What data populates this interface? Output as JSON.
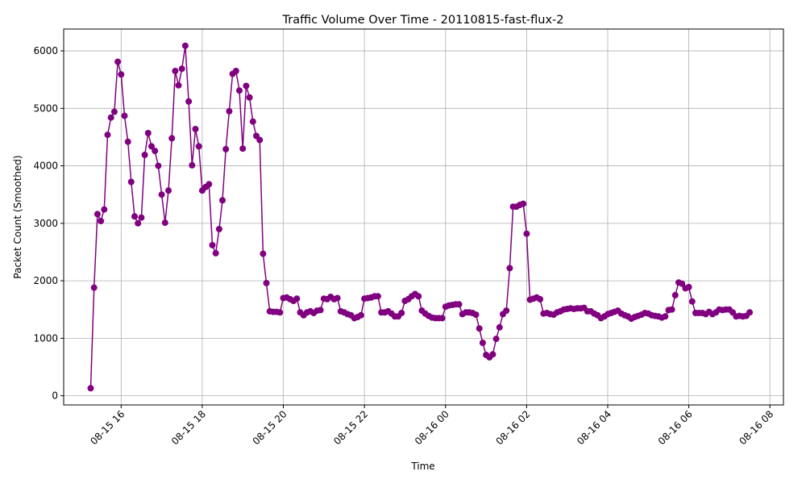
{
  "chart_data": {
    "type": "line",
    "title": "Traffic Volume Over Time - 20110815-fast-flux-2",
    "xlabel": "Time",
    "ylabel": "Packet Count (Smoothed)",
    "x_unit": "time (MM-DD HH:MM, 2011)",
    "xlim": [
      "08-15 14:35",
      "08-16 08:20"
    ],
    "ylim": [
      -160,
      6380
    ],
    "grid": true,
    "legend": "none",
    "x_ticks": [
      "08-15 16",
      "08-15 18",
      "08-15 20",
      "08-15 22",
      "08-16 00",
      "08-16 02",
      "08-16 04",
      "08-16 06",
      "08-16 08"
    ],
    "y_ticks": [
      0,
      1000,
      2000,
      3000,
      4000,
      5000,
      6000
    ],
    "colors": {
      "series": "#800080",
      "grid": "#b0b0b0"
    },
    "series": [
      {
        "marker": "circle",
        "x": [
          "08-15 15:15",
          "08-15 15:20",
          "08-15 15:25",
          "08-15 15:30",
          "08-15 15:35",
          "08-15 15:40",
          "08-15 15:45",
          "08-15 15:50",
          "08-15 15:55",
          "08-15 16:00",
          "08-15 16:05",
          "08-15 16:10",
          "08-15 16:15",
          "08-15 16:20",
          "08-15 16:25",
          "08-15 16:30",
          "08-15 16:35",
          "08-15 16:40",
          "08-15 16:45",
          "08-15 16:50",
          "08-15 16:55",
          "08-15 17:00",
          "08-15 17:05",
          "08-15 17:10",
          "08-15 17:15",
          "08-15 17:20",
          "08-15 17:25",
          "08-15 17:30",
          "08-15 17:35",
          "08-15 17:40",
          "08-15 17:45",
          "08-15 17:50",
          "08-15 17:55",
          "08-15 18:00",
          "08-15 18:05",
          "08-15 18:10",
          "08-15 18:15",
          "08-15 18:20",
          "08-15 18:25",
          "08-15 18:30",
          "08-15 18:35",
          "08-15 18:40",
          "08-15 18:45",
          "08-15 18:50",
          "08-15 18:55",
          "08-15 19:00",
          "08-15 19:05",
          "08-15 19:10",
          "08-15 19:15",
          "08-15 19:20",
          "08-15 19:25",
          "08-15 19:30",
          "08-15 19:35",
          "08-15 19:40",
          "08-15 19:45",
          "08-15 19:50",
          "08-15 19:55",
          "08-15 20:00",
          "08-15 20:05",
          "08-15 20:10",
          "08-15 20:15",
          "08-15 20:20",
          "08-15 20:25",
          "08-15 20:30",
          "08-15 20:35",
          "08-15 20:40",
          "08-15 20:45",
          "08-15 20:50",
          "08-15 20:55",
          "08-15 21:00",
          "08-15 21:05",
          "08-15 21:10",
          "08-15 21:15",
          "08-15 21:20",
          "08-15 21:25",
          "08-15 21:30",
          "08-15 21:35",
          "08-15 21:40",
          "08-15 21:45",
          "08-15 21:50",
          "08-15 21:55",
          "08-15 22:00",
          "08-15 22:05",
          "08-15 22:10",
          "08-15 22:15",
          "08-15 22:20",
          "08-15 22:25",
          "08-15 22:30",
          "08-15 22:35",
          "08-15 22:40",
          "08-15 22:45",
          "08-15 22:50",
          "08-15 22:55",
          "08-15 23:00",
          "08-15 23:05",
          "08-15 23:10",
          "08-15 23:15",
          "08-15 23:20",
          "08-15 23:25",
          "08-15 23:30",
          "08-15 23:35",
          "08-15 23:40",
          "08-15 23:45",
          "08-15 23:50",
          "08-15 23:55",
          "08-16 00:00",
          "08-16 00:05",
          "08-16 00:10",
          "08-16 00:15",
          "08-16 00:20",
          "08-16 00:25",
          "08-16 00:30",
          "08-16 00:35",
          "08-16 00:40",
          "08-16 00:45",
          "08-16 00:50",
          "08-16 00:55",
          "08-16 01:00",
          "08-16 01:05",
          "08-16 01:10",
          "08-16 01:15",
          "08-16 01:20",
          "08-16 01:25",
          "08-16 01:30",
          "08-16 01:35",
          "08-16 01:40",
          "08-16 01:45",
          "08-16 01:50",
          "08-16 01:55",
          "08-16 02:00",
          "08-16 02:05",
          "08-16 02:10",
          "08-16 02:15",
          "08-16 02:20",
          "08-16 02:25",
          "08-16 02:30",
          "08-16 02:35",
          "08-16 02:40",
          "08-16 02:45",
          "08-16 02:50",
          "08-16 02:55",
          "08-16 03:00",
          "08-16 03:05",
          "08-16 03:10",
          "08-16 03:15",
          "08-16 03:20",
          "08-16 03:25",
          "08-16 03:30",
          "08-16 03:35",
          "08-16 03:40",
          "08-16 03:45",
          "08-16 03:50",
          "08-16 03:55",
          "08-16 04:00",
          "08-16 04:05",
          "08-16 04:10",
          "08-16 04:15",
          "08-16 04:20",
          "08-16 04:25",
          "08-16 04:30",
          "08-16 04:35",
          "08-16 04:40",
          "08-16 04:45",
          "08-16 04:50",
          "08-16 04:55",
          "08-16 05:00",
          "08-16 05:05",
          "08-16 05:10",
          "08-16 05:15",
          "08-16 05:20",
          "08-16 05:25",
          "08-16 05:30",
          "08-16 05:35",
          "08-16 05:40",
          "08-16 05:45",
          "08-16 05:50",
          "08-16 05:55",
          "08-16 06:00",
          "08-16 06:05",
          "08-16 06:10",
          "08-16 06:15",
          "08-16 06:20",
          "08-16 06:25",
          "08-16 06:30",
          "08-16 06:35",
          "08-16 06:40",
          "08-16 06:45",
          "08-16 06:50",
          "08-16 06:55",
          "08-16 07:00",
          "08-16 07:05",
          "08-16 07:10",
          "08-16 07:15",
          "08-16 07:20",
          "08-16 07:25",
          "08-16 07:30"
        ],
        "y": [
          130,
          1880,
          3160,
          3040,
          3240,
          4540,
          4840,
          4940,
          5810,
          5590,
          4870,
          4420,
          3720,
          3120,
          3000,
          3100,
          4190,
          4570,
          4340,
          4260,
          4000,
          3500,
          3010,
          3570,
          4480,
          5650,
          5400,
          5690,
          6090,
          5120,
          4010,
          4640,
          4340,
          3570,
          3630,
          3680,
          2620,
          2480,
          2900,
          3400,
          4290,
          4950,
          5600,
          5650,
          5310,
          4300,
          5390,
          5190,
          4770,
          4520,
          4450,
          2470,
          1960,
          1470,
          1460,
          1460,
          1450,
          1700,
          1710,
          1680,
          1650,
          1690,
          1450,
          1400,
          1450,
          1470,
          1440,
          1480,
          1490,
          1690,
          1680,
          1720,
          1680,
          1700,
          1470,
          1450,
          1420,
          1400,
          1350,
          1370,
          1400,
          1690,
          1700,
          1710,
          1730,
          1730,
          1450,
          1450,
          1470,
          1430,
          1380,
          1380,
          1440,
          1650,
          1680,
          1730,
          1770,
          1730,
          1480,
          1430,
          1390,
          1360,
          1350,
          1350,
          1350,
          1550,
          1570,
          1580,
          1590,
          1590,
          1420,
          1450,
          1450,
          1440,
          1410,
          1170,
          920,
          710,
          670,
          720,
          990,
          1190,
          1420,
          1480,
          2220,
          3290,
          3290,
          3320,
          3340,
          2820,
          1670,
          1690,
          1710,
          1680,
          1430,
          1440,
          1420,
          1410,
          1450,
          1470,
          1500,
          1510,
          1520,
          1510,
          1520,
          1520,
          1530,
          1470,
          1470,
          1430,
          1400,
          1350,
          1380,
          1420,
          1440,
          1460,
          1480,
          1430,
          1400,
          1380,
          1340,
          1370,
          1390,
          1410,
          1440,
          1430,
          1400,
          1390,
          1380,
          1360,
          1380,
          1490,
          1500,
          1750,
          1970,
          1950,
          1870,
          1890,
          1640,
          1440,
          1440,
          1440,
          1420,
          1460,
          1420,
          1450,
          1500,
          1490,
          1500,
          1500,
          1450,
          1380,
          1390,
          1380,
          1390,
          1450
        ]
      }
    ]
  }
}
